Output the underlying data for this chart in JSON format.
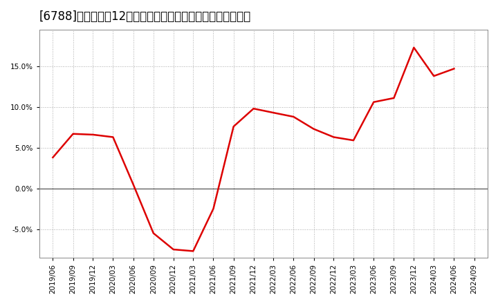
{
  "title": "[6788]　売上高の12か月移動合計の対前年同期増減率の推移",
  "line_color": "#dd0000",
  "background_color": "#ffffff",
  "plot_bg_color": "#ffffff",
  "grid_color": "#aaaaaa",
  "zero_line_color": "#555555",
  "dates": [
    "2019/06",
    "2019/09",
    "2019/12",
    "2020/03",
    "2020/06",
    "2020/09",
    "2020/12",
    "2021/03",
    "2021/06",
    "2021/09",
    "2021/12",
    "2022/03",
    "2022/06",
    "2022/09",
    "2022/12",
    "2023/03",
    "2023/06",
    "2023/09",
    "2023/12",
    "2024/03",
    "2024/06"
  ],
  "values": [
    3.8,
    6.7,
    6.6,
    6.3,
    0.5,
    -5.5,
    -7.5,
    -7.7,
    -2.5,
    7.6,
    9.8,
    9.3,
    8.8,
    7.3,
    6.3,
    5.9,
    10.6,
    11.1,
    17.3,
    13.8,
    14.7
  ],
  "yticks": [
    -5.0,
    0.0,
    5.0,
    10.0,
    15.0
  ],
  "xtick_labels": [
    "2019/06",
    "2019/09",
    "2019/12",
    "2020/03",
    "2020/06",
    "2020/09",
    "2020/12",
    "2021/03",
    "2021/06",
    "2021/09",
    "2021/12",
    "2022/03",
    "2022/06",
    "2022/09",
    "2022/12",
    "2023/03",
    "2023/06",
    "2023/09",
    "2023/12",
    "2024/03",
    "2024/06",
    "2024/09"
  ],
  "ylim": [
    -8.5,
    19.5
  ],
  "title_fontsize": 12,
  "tick_fontsize": 7.5,
  "line_width": 1.8
}
